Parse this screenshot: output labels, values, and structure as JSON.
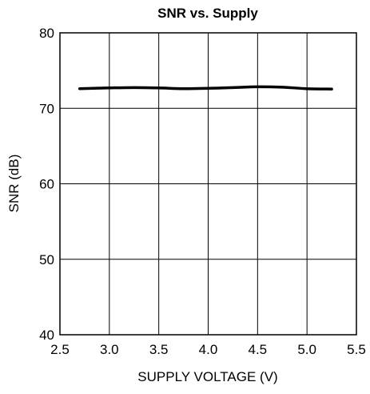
{
  "chart_data": {
    "type": "line",
    "title": "SNR vs. Supply",
    "xlabel": "SUPPLY VOLTAGE (V)",
    "ylabel": "SNR (dB)",
    "xlim": [
      2.5,
      5.5
    ],
    "ylim": [
      40,
      80
    ],
    "x_ticks": [
      2.5,
      3.0,
      3.5,
      4.0,
      4.5,
      5.0,
      5.5
    ],
    "x_tick_labels": [
      "2.5",
      "3.0",
      "3.5",
      "4.0",
      "4.5",
      "5.0",
      "5.5"
    ],
    "y_ticks": [
      40,
      50,
      60,
      70,
      80
    ],
    "y_tick_labels": [
      "40",
      "50",
      "60",
      "70",
      "80"
    ],
    "grid": true,
    "legend": "none",
    "series": [
      {
        "color": "#000000",
        "x": [
          2.7,
          3.0,
          3.25,
          3.5,
          3.75,
          4.0,
          4.25,
          4.5,
          4.75,
          5.0,
          5.25
        ],
        "y": [
          72.6,
          72.7,
          72.75,
          72.7,
          72.6,
          72.65,
          72.75,
          72.85,
          72.8,
          72.6,
          72.55
        ]
      }
    ]
  }
}
